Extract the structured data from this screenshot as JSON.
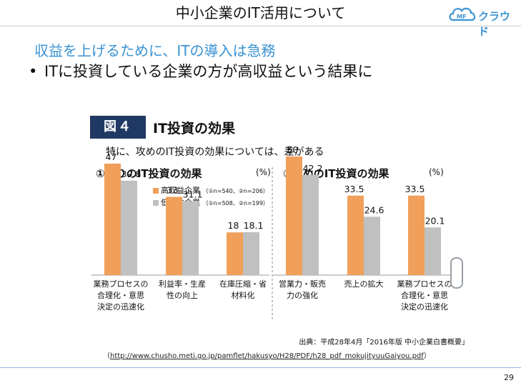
{
  "slide": {
    "title": "中小企業のIT活用について",
    "subtitle": "収益を上げるために、ITの導入は急務",
    "bullet": "ITに投資している企業の方が高収益という結果に",
    "page_number": "29"
  },
  "logo": {
    "text": "クラウド",
    "mark_text": "MF",
    "color": "#3a92d2"
  },
  "figure": {
    "badge": "図４",
    "title": "IT投資の効果",
    "subtitle": "特に、攻めのIT投資の効果については、差がある"
  },
  "source": {
    "line": "出典：平成28年4月「2016年版 中小企業白書概要」",
    "url_open": "（",
    "url": "http://www.chusho.meti.go.jp/pamflet/hakusyo/H28/PDF/h28_pdf_mokujityuuGaiyou.pdf",
    "url_close": "）"
  },
  "chart_data": {
    "type": "bar",
    "ylim": [
      0,
      55
    ],
    "grid": false,
    "legend_position": "top-center",
    "colors": {
      "high": "#f0a05a",
      "low": "#c0c0c0"
    },
    "legend": [
      {
        "label": "高収益企業",
        "note": "（①n=540、②n=206）"
      },
      {
        "label": "低収益企業",
        "note": "（①n=508、②n=199）"
      }
    ],
    "panels": [
      {
        "title": "①守りのIT投資の効果",
        "unit": "(%)",
        "categories": [
          "業務プロセスの\n合理化・意思\n決定の迅速化",
          "利益率・生産\n性の向上",
          "在庫圧縮・省\n材料化"
        ],
        "series": [
          {
            "name": "高収益企業",
            "values": [
              47,
              33,
              18
            ]
          },
          {
            "name": "低収益企業",
            "values": [
              39.8,
              31.1,
              18.1
            ]
          }
        ]
      },
      {
        "title": "②攻めのIT投資の効果",
        "unit": "(%)",
        "categories": [
          "営業力・販売\n力の強化",
          "売上の拡大",
          "業務プロセスの\n合理化・意思\n決定の迅速化"
        ],
        "series": [
          {
            "name": "高収益企業",
            "values": [
              50,
              33.5,
              33.5
            ]
          },
          {
            "name": "低収益企業",
            "values": [
              42.2,
              24.6,
              20.1
            ]
          }
        ]
      }
    ]
  }
}
